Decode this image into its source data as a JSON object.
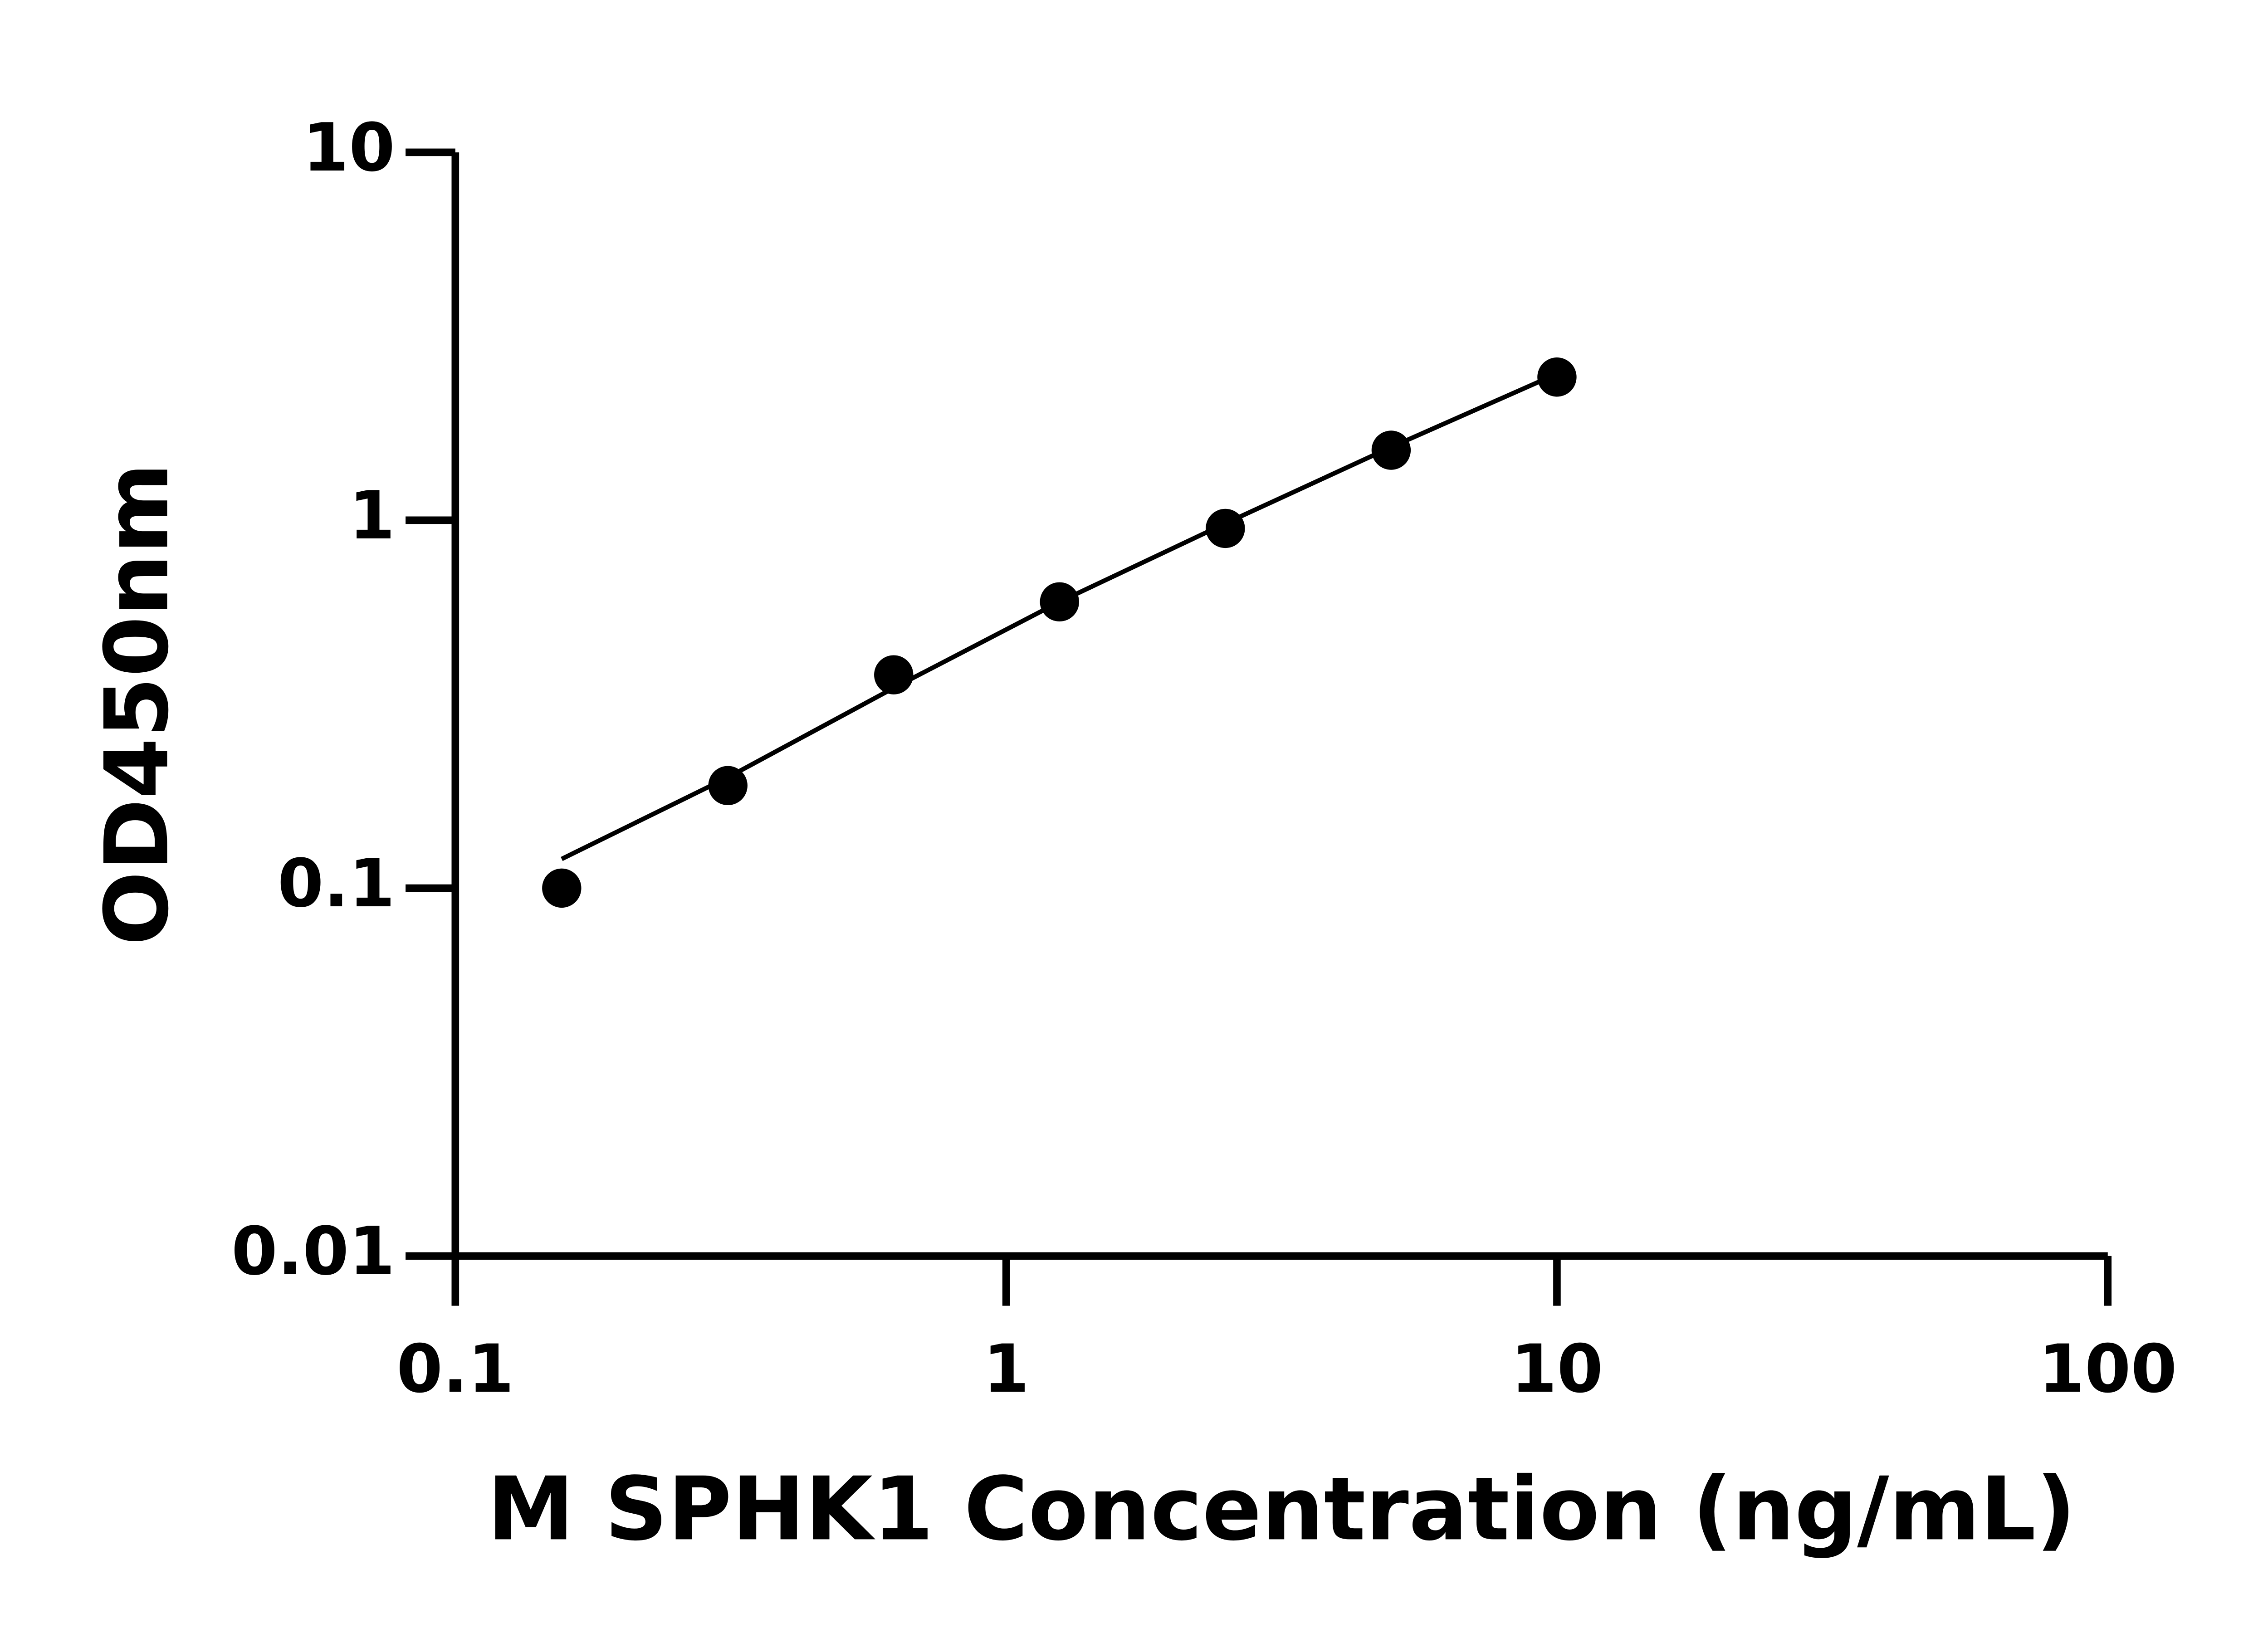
{
  "chart_data": {
    "type": "scatter",
    "x_label": "M SPHK1 Concentration (ng/mL)",
    "y_label": "OD450nm",
    "x": [
      0.156,
      0.3125,
      0.625,
      1.25,
      2.5,
      5,
      10
    ],
    "series": [
      {
        "color": "#000000",
        "values": [
          0.1,
          0.19,
          0.38,
          0.6,
          0.95,
          1.55,
          2.45
        ],
        "mode": "markers"
      },
      {
        "color": "#000000",
        "x": [
          0.156,
          0.3125,
          0.625,
          1.25,
          2.5,
          5,
          10
        ],
        "values": [
          0.12,
          0.2,
          0.35,
          0.6,
          0.98,
          1.58,
          2.5
        ],
        "mode": "line"
      }
    ],
    "xscale": "log",
    "yscale": "log",
    "xlim": [
      0.1,
      100
    ],
    "ylim": [
      0.01,
      10
    ],
    "xticks": [
      0.1,
      1,
      10,
      100
    ],
    "yticks": [
      0.01,
      0.1,
      1,
      10
    ],
    "grid": false
  }
}
